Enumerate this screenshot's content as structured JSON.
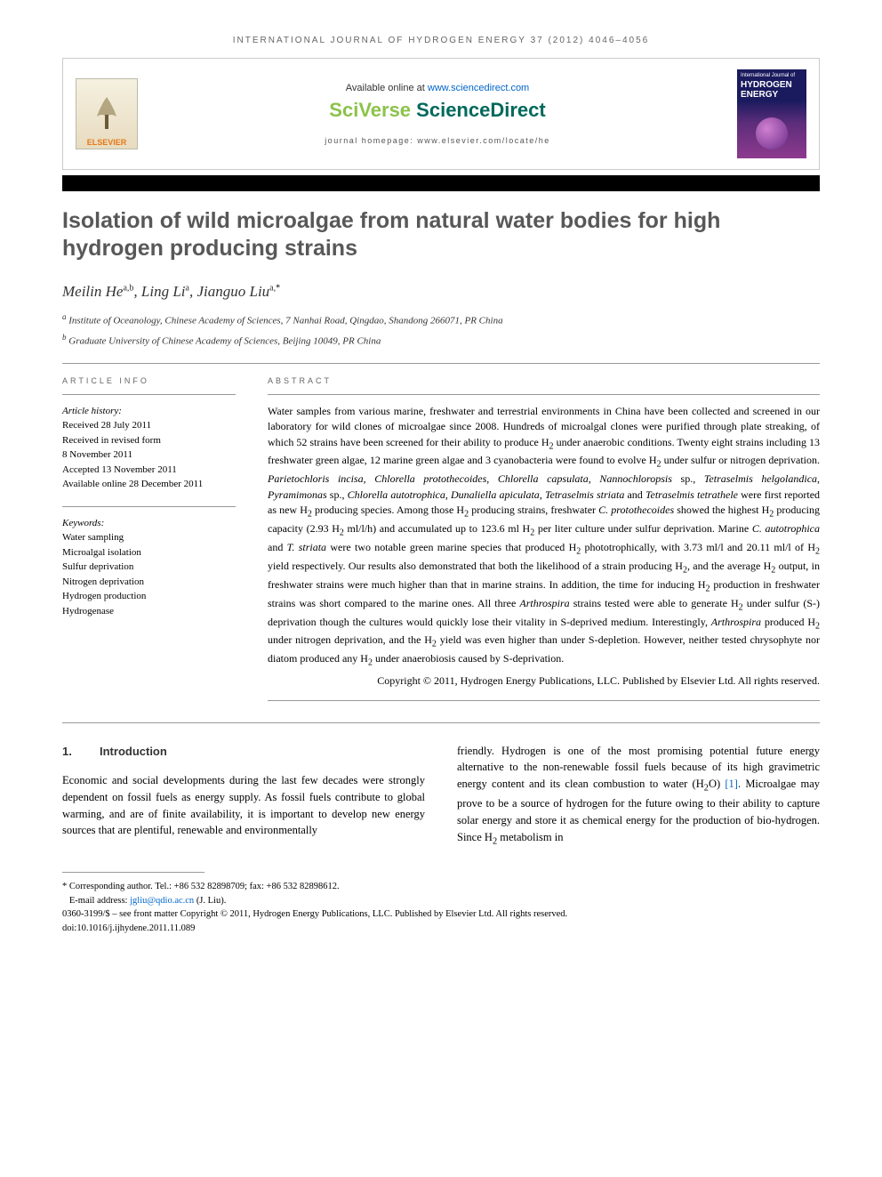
{
  "running_head": "INTERNATIONAL JOURNAL OF HYDROGEN ENERGY 37 (2012) 4046–4056",
  "header": {
    "available_prefix": "Available online at ",
    "available_url": "www.sciencedirect.com",
    "sciverse_a": "SciVerse ",
    "sciverse_b": "ScienceDirect",
    "homepage": "journal homepage: www.elsevier.com/locate/he",
    "elsevier": "ELSEVIER",
    "cover_line1": "International Journal of",
    "cover_line2a": "HYDROGEN",
    "cover_line2b": "ENERGY"
  },
  "title": "Isolation of wild microalgae from natural water bodies for high hydrogen producing strains",
  "authors_html": "Meilin He<sup>a,b</sup>, Ling Li<sup>a</sup>, Jianguo Liu<sup>a,</sup><sup class=\"star\">*</sup>",
  "affiliations": [
    "<sup>a</sup> Institute of Oceanology, Chinese Academy of Sciences, 7 Nanhai Road, Qingdao, Shandong 266071, PR China",
    "<sup>b</sup> Graduate University of Chinese Academy of Sciences, Beijing 10049, PR China"
  ],
  "article_info": {
    "head": "ARTICLE INFO",
    "history_label": "Article history:",
    "history": [
      "Received 28 July 2011",
      "Received in revised form",
      "8 November 2011",
      "Accepted 13 November 2011",
      "Available online 28 December 2011"
    ],
    "keywords_label": "Keywords:",
    "keywords": [
      "Water sampling",
      "Microalgal isolation",
      "Sulfur deprivation",
      "Nitrogen deprivation",
      "Hydrogen production",
      "Hydrogenase"
    ]
  },
  "abstract": {
    "head": "ABSTRACT",
    "body_html": "Water samples from various marine, freshwater and terrestrial environments in China have been collected and screened in our laboratory for wild clones of microalgae since 2008. Hundreds of microalgal clones were purified through plate streaking, of which 52 strains have been screened for their ability to produce H<sub>2</sub> under anaerobic conditions. Twenty eight strains including 13 freshwater green algae, 12 marine green algae and 3 cyanobacteria were found to evolve H<sub>2</sub> under sulfur or nitrogen deprivation. <em>Parietochloris incisa</em>, <em>Chlorella protothecoides</em>, <em>Chlorella capsulata</em>, <em>Nannochloropsis</em> sp., <em>Tetraselmis helgolandica</em>, <em>Pyramimonas</em> sp., <em>Chlorella autotrophica</em>, <em>Dunaliella apiculata</em>, <em>Tetraselmis striata</em> and <em>Tetraselmis tetrathele</em> were first reported as new H<sub>2</sub> producing species. Among those H<sub>2</sub> producing strains, freshwater <em>C. protothecoides</em> showed the highest H<sub>2</sub> producing capacity (2.93 H<sub>2</sub> ml/l/h) and accumulated up to 123.6 ml H<sub>2</sub> per liter culture under sulfur deprivation. Marine <em>C. autotrophica</em> and <em>T. striata</em> were two notable green marine species that produced H<sub>2</sub> phototrophically, with 3.73 ml/l and 20.11 ml/l of H<sub>2</sub> yield respectively. Our results also demonstrated that both the likelihood of a strain producing H<sub>2</sub>, and the average H<sub>2</sub> output, in freshwater strains were much higher than that in marine strains. In addition, the time for inducing H<sub>2</sub> production in freshwater strains was short compared to the marine ones. All three <em>Arthrospira</em> strains tested were able to generate H<sub>2</sub> under sulfur (S-) deprivation though the cultures would quickly lose their vitality in S-deprived medium. Interestingly, <em>Arthrospira</em> produced H<sub>2</sub> under nitrogen deprivation, and the H<sub>2</sub> yield was even higher than under S-depletion. However, neither tested chrysophyte nor diatom produced any H<sub>2</sub> under anaerobiosis caused by S-deprivation.",
    "copyright": "Copyright © 2011, Hydrogen Energy Publications, LLC. Published by Elsevier Ltd. All rights reserved."
  },
  "intro": {
    "num": "1.",
    "title": "Introduction",
    "col1": "Economic and social developments during the last few decades were strongly dependent on fossil fuels as energy supply. As fossil fuels contribute to global warming, and are of finite availability, it is important to develop new energy sources that are plentiful, renewable and environmentally",
    "col2_html": "friendly. Hydrogen is one of the most promising potential future energy alternative to the non-renewable fossil fuels because of its high gravimetric energy content and its clean combustion to water (H<sub>2</sub>O) <span class=\"cite\">[1]</span>. Microalgae may prove to be a source of hydrogen for the future owing to their ability to capture solar energy and store it as chemical energy for the production of bio-hydrogen. Since H<sub>2</sub> metabolism in"
  },
  "footer": {
    "corr": "* Corresponding author. Tel.: +86 532 82898709; fax: +86 532 82898612.",
    "email_label": "E-mail address: ",
    "email": "jgliu@qdio.ac.cn",
    "email_suffix": " (J. Liu).",
    "line1": "0360-3199/$ – see front matter Copyright © 2011, Hydrogen Energy Publications, LLC. Published by Elsevier Ltd. All rights reserved.",
    "doi": "doi:10.1016/j.ijhydene.2011.11.089"
  },
  "colors": {
    "link": "#0066cc",
    "title_gray": "#585858",
    "elsevier_orange": "#e67817"
  }
}
